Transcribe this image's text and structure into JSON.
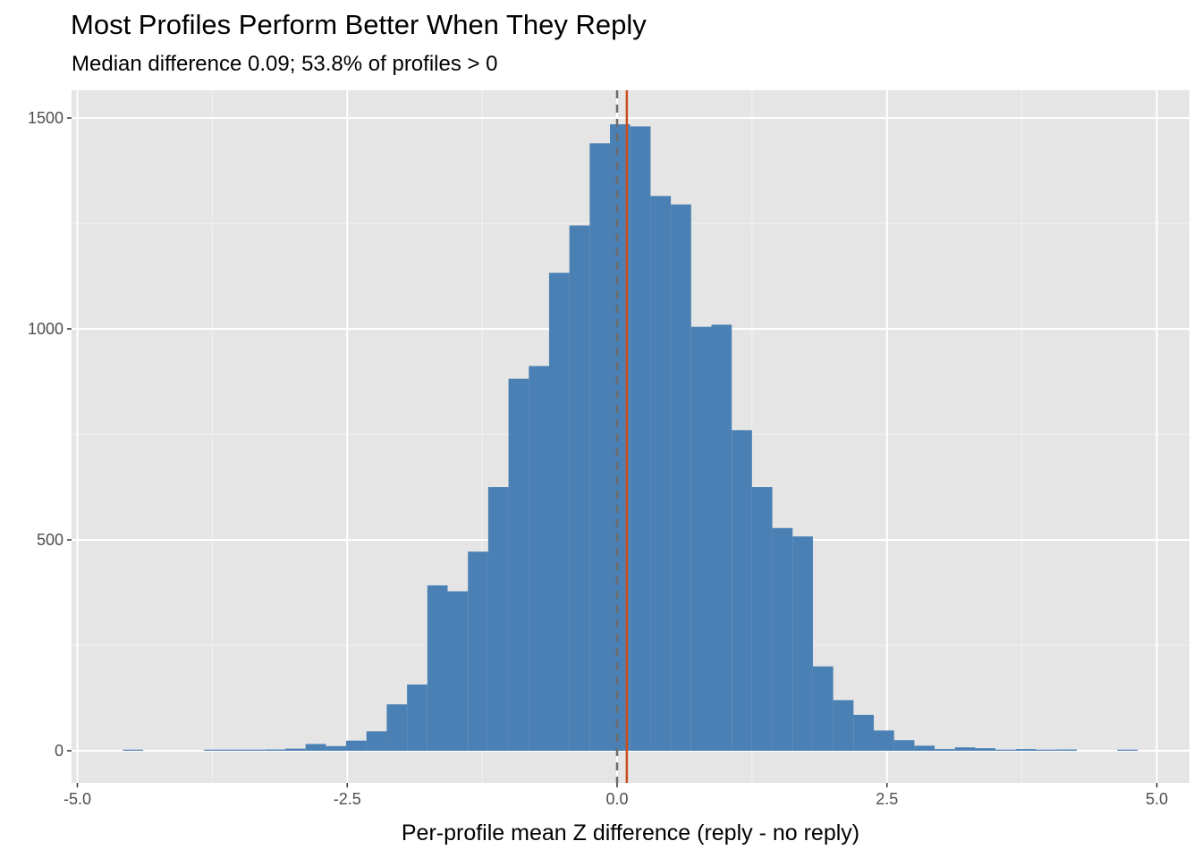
{
  "chart_data": {
    "type": "bar",
    "subtype": "histogram",
    "title": "Most Profiles Perform Better When They Reply",
    "subtitle": "Median difference 0.09; 53.8% of profiles > 0",
    "xlabel": "Per-profile mean Z difference (reply - no reply)",
    "ylabel": "",
    "xlim": [
      -5.05,
      5.3
    ],
    "ylim": [
      -75,
      1560
    ],
    "xticks": [
      "-5.0",
      "-2.5",
      "0.0",
      "2.5",
      "5.0"
    ],
    "xtick_values": [
      -5,
      -2.5,
      0,
      2.5,
      5
    ],
    "yticks": [
      "0",
      "500",
      "1000",
      "1500"
    ],
    "ytick_values": [
      0,
      500,
      1000,
      1500
    ],
    "grid": true,
    "bin_start": -4.578,
    "bin_width": 0.188,
    "values": [
      1,
      0,
      0,
      0,
      1,
      1,
      2,
      3,
      5,
      16,
      11,
      24,
      46,
      110,
      157,
      392,
      378,
      472,
      625,
      882,
      912,
      1133,
      1245,
      1440,
      1485,
      1480,
      1315,
      1295,
      1005,
      1010,
      760,
      625,
      528,
      508,
      200,
      120,
      85,
      48,
      25,
      12,
      4,
      8,
      6,
      2,
      4,
      2,
      3,
      0,
      0,
      1
    ],
    "reference_lines": [
      {
        "name": "zero",
        "x": 0,
        "style": "dashed",
        "color": "#6b6b6b"
      },
      {
        "name": "median",
        "x": 0.09,
        "style": "solid",
        "color": "#cc4c1a"
      }
    ],
    "bar_color": "#4a80b4",
    "panel_color": "#e5e5e5"
  }
}
